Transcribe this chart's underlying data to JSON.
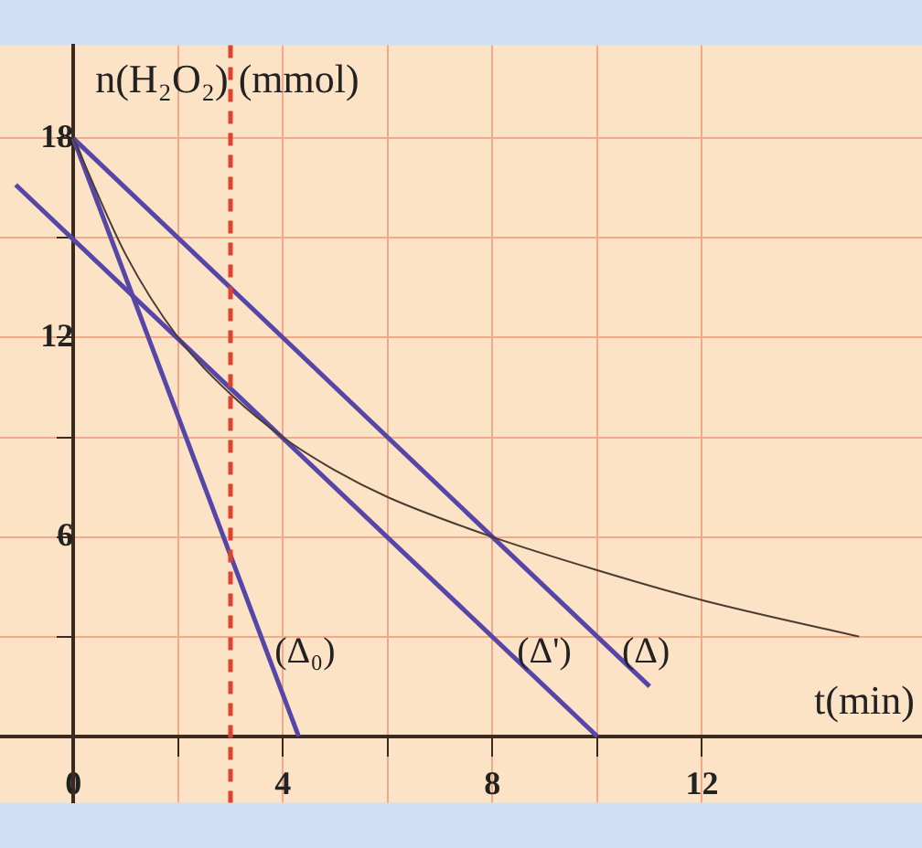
{
  "chart_data": {
    "type": "line",
    "xlabel": "t(min)",
    "ylabel": "n(H₂O₂) (mmol)",
    "xlim": [
      -1.4,
      16.2
    ],
    "ylim": [
      -2,
      20.8
    ],
    "xticks": [
      {
        "value": 0,
        "label": "0"
      },
      {
        "value": 2,
        "label": null
      },
      {
        "value": 4,
        "label": "4"
      },
      {
        "value": 6,
        "label": null
      },
      {
        "value": 8,
        "label": "8"
      },
      {
        "value": 10,
        "label": null
      },
      {
        "value": 12,
        "label": "12"
      }
    ],
    "yticks": [
      {
        "value": 3,
        "label": null
      },
      {
        "value": 6,
        "label": "6"
      },
      {
        "value": 9,
        "label": null
      },
      {
        "value": 12,
        "label": "12"
      },
      {
        "value": 15,
        "label": null
      },
      {
        "value": 18,
        "label": "18"
      }
    ],
    "grid": true,
    "legend": false,
    "marker": "none",
    "line_style": "solid",
    "series": [
      {
        "color": "#4a3c30",
        "x": [
          0,
          1,
          2,
          3,
          4,
          5,
          6,
          8,
          10,
          12,
          15
        ],
        "values": [
          18,
          14.5,
          12,
          10.3,
          9,
          8,
          7.2,
          6,
          5,
          4.1,
          3
        ]
      },
      {
        "name": "(Δ₀)",
        "color": "#5646a8",
        "x": [
          0,
          4.3
        ],
        "values": [
          18,
          0
        ]
      },
      {
        "name": "(Δ')",
        "color": "#5646a8",
        "x": [
          -1.1,
          10
        ],
        "values": [
          16.6,
          0
        ]
      },
      {
        "name": "(Δ)",
        "color": "#5646a8",
        "x": [
          0,
          11
        ],
        "values": [
          18,
          1.5
        ]
      }
    ],
    "ref_lines": [
      {
        "axis": "x",
        "value": 3,
        "color": "#e0402c",
        "line_style": "dashed"
      }
    ]
  }
}
